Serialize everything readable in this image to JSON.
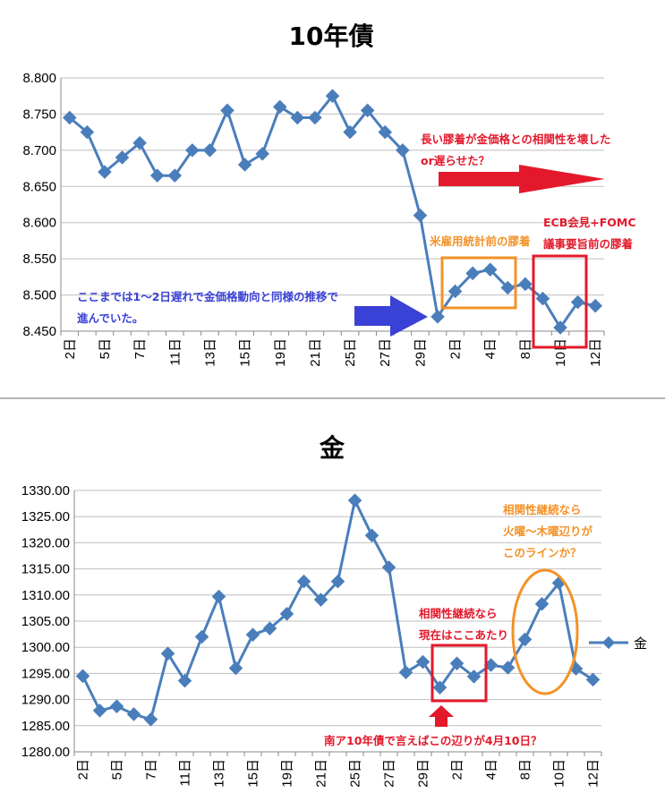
{
  "charts": [
    {
      "type": "line",
      "title": "10年債",
      "categories": [
        "2日",
        "",
        "5日",
        "",
        "7日",
        "",
        "11日",
        "",
        "13日",
        "",
        "15日",
        "",
        "19日",
        "",
        "21日",
        "",
        "25日",
        "",
        "27日",
        "",
        "29日",
        "",
        "2日",
        "",
        "4日",
        "",
        "8日",
        "",
        "10日",
        "",
        "12日"
      ],
      "values": [
        8.745,
        8.725,
        8.67,
        8.69,
        8.71,
        8.665,
        8.665,
        8.7,
        8.7,
        8.755,
        8.68,
        8.695,
        8.76,
        8.745,
        8.745,
        8.775,
        8.725,
        8.755,
        8.725,
        8.7,
        8.61,
        8.47,
        8.505,
        8.53,
        8.535,
        8.51,
        8.515,
        8.495,
        8.455,
        8.49,
        8.485
      ],
      "ylim": [
        8.45,
        8.8
      ],
      "yticks": [
        "8.800",
        "8.750",
        "8.700",
        "8.650",
        "8.600",
        "8.550",
        "8.500",
        "8.450"
      ],
      "grid": true,
      "line_color": "#4a7ebb",
      "annotations": {
        "top_right_line1": "長い膠着が金価格との相関性を壊した",
        "top_right_line2": "or遅らせた？",
        "ecb_line1": "ECB会見+FOMC",
        "ecb_line2": "議事要旨前の膠着",
        "nfp": "米雇用統計前の膠着",
        "left_line1": "ここまでは1～2日遅れで金価格動向と同様の推移で",
        "left_line2": "進んでいた。"
      },
      "annotation_colors": {
        "red": "#e3192b",
        "orange": "#f39228",
        "blue": "#3a41d6"
      }
    },
    {
      "type": "line",
      "title": "金",
      "categories": [
        "2日",
        "",
        "5日",
        "",
        "7日",
        "",
        "11日",
        "",
        "13日",
        "",
        "15日",
        "",
        "19日",
        "",
        "21日",
        "",
        "25日",
        "",
        "27日",
        "",
        "29日",
        "",
        "2日",
        "",
        "4日",
        "",
        "8日",
        "",
        "10日",
        "",
        "12日"
      ],
      "values": [
        1294.5,
        1287.9,
        1288.7,
        1287.2,
        1286.2,
        1298.8,
        1293.6,
        1302.0,
        1309.7,
        1296.0,
        1302.4,
        1303.6,
        1306.4,
        1312.6,
        1309.1,
        1312.6,
        1328.1,
        1321.4,
        1315.3,
        1295.2,
        1297.2,
        1292.3,
        1296.9,
        1294.4,
        1296.6,
        1296.1,
        1301.5,
        1308.3,
        1312.3,
        1295.9,
        1293.8
      ],
      "ylim": [
        1280.0,
        1330.0
      ],
      "yticks": [
        "1330.00",
        "1325.00",
        "1320.00",
        "1315.00",
        "1310.00",
        "1305.00",
        "1300.00",
        "1295.00",
        "1290.00",
        "1285.00",
        "1280.00"
      ],
      "grid": true,
      "legend": "金",
      "legend_position": "right",
      "line_color": "#4a7ebb",
      "annotations": {
        "orange_line1": "相関性継続なら",
        "orange_line2": "火曜～木曜辺りが",
        "orange_line3": "このラインか？",
        "red_line1": "相関性継続なら",
        "red_line2": "現在はここあたり",
        "bottom": "南ア10年債で言えばこの辺りが4月10日？"
      },
      "annotation_colors": {
        "red": "#e3192b",
        "orange": "#f39228"
      }
    }
  ]
}
